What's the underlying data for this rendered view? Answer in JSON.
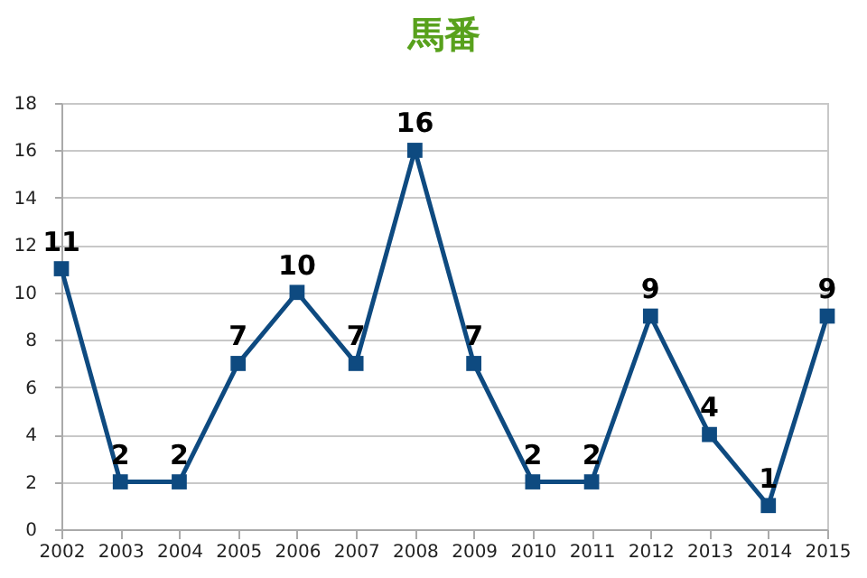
{
  "chart_data": {
    "type": "line",
    "title": "馬番",
    "categories": [
      "2002",
      "2003",
      "2004",
      "2005",
      "2006",
      "2007",
      "2008",
      "2009",
      "2010",
      "2011",
      "2012",
      "2013",
      "2014",
      "2015"
    ],
    "series": [
      {
        "color": "#0e4a80",
        "values": [
          11,
          2,
          2,
          7,
          10,
          7,
          16,
          7,
          2,
          2,
          9,
          4,
          1,
          9
        ]
      }
    ],
    "ylim": [
      0,
      18
    ],
    "yticks": [
      0,
      2,
      4,
      6,
      8,
      10,
      12,
      14,
      16,
      18
    ],
    "grid": "y",
    "marker": "square",
    "data_labels": true,
    "legend": false
  }
}
